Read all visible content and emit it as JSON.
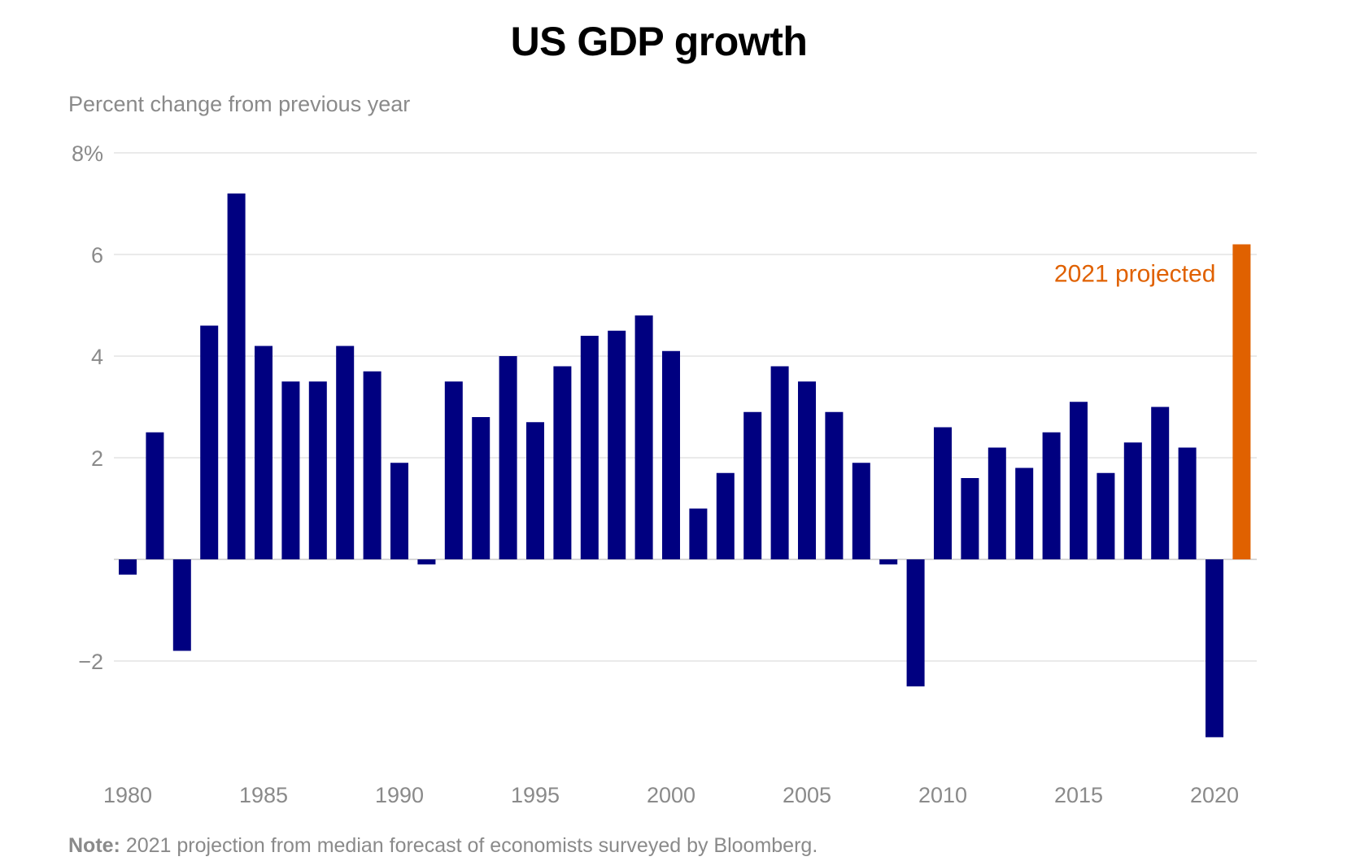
{
  "chart_data": {
    "type": "bar",
    "title": "US GDP growth",
    "subtitle": "Percent change from previous year",
    "ylabel": "",
    "xlabel": "",
    "ylim": [
      -4,
      8
    ],
    "y_ticks": [
      {
        "value": 8,
        "label": "8%"
      },
      {
        "value": 6,
        "label": "6"
      },
      {
        "value": 4,
        "label": "4"
      },
      {
        "value": 2,
        "label": "2"
      },
      {
        "value": -2,
        "label": "−2"
      }
    ],
    "x_ticks": [
      "1980",
      "1985",
      "1990",
      "1995",
      "2000",
      "2005",
      "2010",
      "2015",
      "2020"
    ],
    "grid": true,
    "legend": "none",
    "categories": [
      "1980",
      "1981",
      "1982",
      "1983",
      "1984",
      "1985",
      "1986",
      "1987",
      "1988",
      "1989",
      "1990",
      "1991",
      "1992",
      "1993",
      "1994",
      "1995",
      "1996",
      "1997",
      "1998",
      "1999",
      "2000",
      "2001",
      "2002",
      "2003",
      "2004",
      "2005",
      "2006",
      "2007",
      "2008",
      "2009",
      "2010",
      "2011",
      "2012",
      "2013",
      "2014",
      "2015",
      "2016",
      "2017",
      "2018",
      "2019",
      "2020",
      "2021"
    ],
    "values": [
      -0.3,
      2.5,
      -1.8,
      4.6,
      7.2,
      4.2,
      3.5,
      3.5,
      4.2,
      3.7,
      1.9,
      -0.1,
      3.5,
      2.8,
      4.0,
      2.7,
      3.8,
      4.4,
      4.5,
      4.8,
      4.1,
      1.0,
      1.7,
      2.9,
      3.8,
      3.5,
      2.9,
      1.9,
      -0.1,
      -2.5,
      2.6,
      1.6,
      2.2,
      1.8,
      2.5,
      3.1,
      1.7,
      2.3,
      3.0,
      2.2,
      -3.5,
      6.2
    ],
    "colors": {
      "actual": "#000080",
      "projected": "#e06100",
      "grid": "#e3e3e3",
      "zero_line": "#cccccc",
      "tick_text": "#8a8a8a"
    },
    "projected_category": "2021",
    "annotation": "2021 projected"
  },
  "note": {
    "label": "Note:",
    "text": " 2021 projection from median forecast of economists surveyed by Bloomberg."
  }
}
